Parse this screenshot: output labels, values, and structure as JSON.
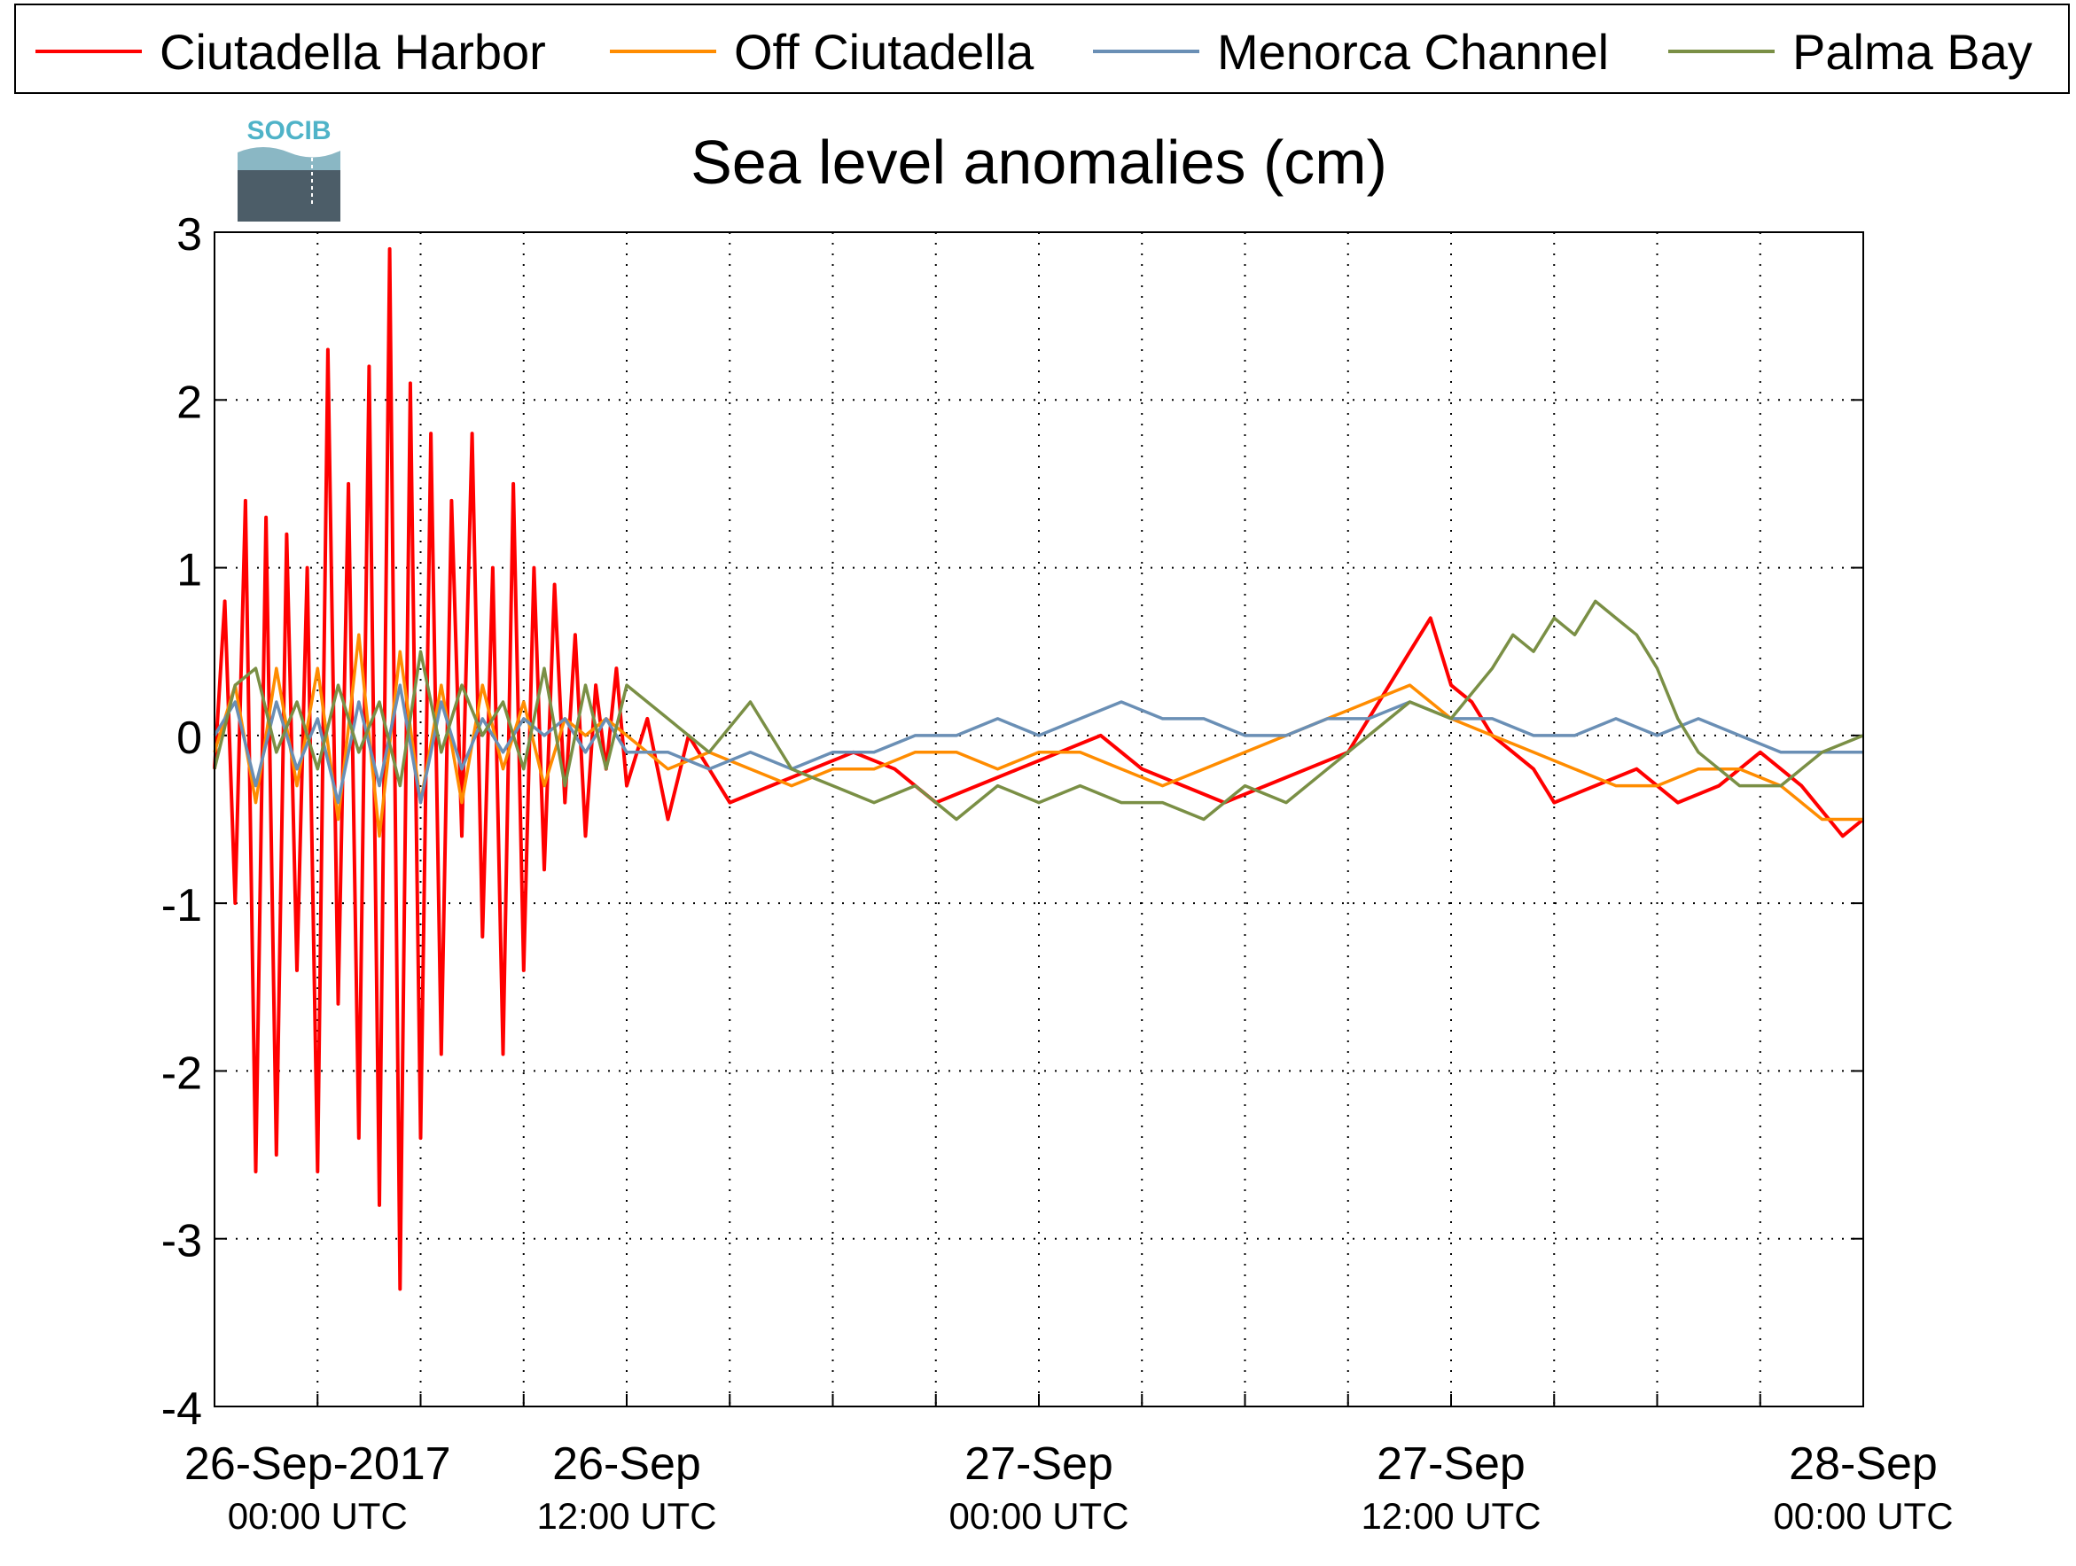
{
  "logo": {
    "text": "SOCIB",
    "color": "#4fb3c8"
  },
  "chart_data": {
    "type": "line",
    "title": "Sea level anomalies (cm)",
    "xlabel": "",
    "ylabel": "",
    "ylim": [
      -4,
      3
    ],
    "yticks": [
      3,
      2,
      1,
      0,
      -1,
      -2,
      -3,
      -4
    ],
    "xlim_hours": [
      -10,
      150
    ],
    "x_ticks": [
      {
        "line1": "26-Sep-2017",
        "line2": "00:00 UTC",
        "hour": 0
      },
      {
        "line1": "26-Sep",
        "line2": "12:00 UTC",
        "hour": 30
      },
      {
        "line1": "27-Sep",
        "line2": "00:00 UTC",
        "hour": 70
      },
      {
        "line1": "27-Sep",
        "line2": "12:00 UTC",
        "hour": 110
      },
      {
        "line1": "28-Sep",
        "line2": "00:00 UTC",
        "hour": 150
      }
    ],
    "grid": true,
    "legend_position": "top",
    "series": [
      {
        "name": "Ciutadella Harbor",
        "color": "#ff0000",
        "x": [
          -10,
          -9,
          -8,
          -7,
          -6,
          -5,
          -4,
          -3,
          -2,
          -1,
          0,
          1,
          2,
          3,
          4,
          5,
          6,
          7,
          8,
          9,
          10,
          11,
          12,
          13,
          14,
          15,
          16,
          17,
          18,
          19,
          20,
          21,
          22,
          23,
          24,
          25,
          26,
          27,
          28,
          29,
          30,
          32,
          34,
          36,
          38,
          40,
          44,
          48,
          52,
          56,
          60,
          64,
          68,
          72,
          76,
          80,
          84,
          88,
          92,
          96,
          100,
          104,
          106,
          108,
          110,
          112,
          114,
          116,
          118,
          120,
          124,
          128,
          132,
          136,
          140,
          144,
          148,
          150
        ],
        "y": [
          -0.2,
          0.8,
          -1.0,
          1.4,
          -2.6,
          1.3,
          -2.5,
          1.2,
          -1.4,
          1.0,
          -2.6,
          2.3,
          -1.6,
          1.5,
          -2.4,
          2.2,
          -2.8,
          2.9,
          -3.3,
          2.1,
          -2.4,
          1.8,
          -1.9,
          1.4,
          -0.6,
          1.8,
          -1.2,
          1.0,
          -1.9,
          1.5,
          -1.4,
          1.0,
          -0.8,
          0.9,
          -0.4,
          0.6,
          -0.6,
          0.3,
          -0.2,
          0.4,
          -0.3,
          0.1,
          -0.5,
          0.0,
          -0.2,
          -0.4,
          -0.3,
          -0.2,
          -0.1,
          -0.2,
          -0.4,
          -0.3,
          -0.2,
          -0.1,
          0.0,
          -0.2,
          -0.3,
          -0.4,
          -0.3,
          -0.2,
          -0.1,
          0.3,
          0.5,
          0.7,
          0.3,
          0.2,
          0.0,
          -0.1,
          -0.2,
          -0.4,
          -0.3,
          -0.2,
          -0.4,
          -0.3,
          -0.1,
          -0.3,
          -0.6,
          -0.5
        ]
      },
      {
        "name": "Off Ciutadella",
        "color": "#ff8c00",
        "x": [
          -10,
          -8,
          -6,
          -4,
          -2,
          0,
          2,
          4,
          6,
          8,
          10,
          12,
          14,
          16,
          18,
          20,
          22,
          24,
          26,
          28,
          30,
          34,
          38,
          42,
          46,
          50,
          54,
          58,
          62,
          66,
          70,
          74,
          78,
          82,
          86,
          90,
          94,
          98,
          102,
          106,
          110,
          114,
          118,
          122,
          126,
          130,
          134,
          138,
          142,
          146,
          150
        ],
        "y": [
          -0.1,
          0.3,
          -0.4,
          0.4,
          -0.3,
          0.4,
          -0.5,
          0.6,
          -0.6,
          0.5,
          -0.4,
          0.3,
          -0.4,
          0.3,
          -0.2,
          0.2,
          -0.3,
          0.1,
          0.0,
          0.1,
          0.0,
          -0.2,
          -0.1,
          -0.2,
          -0.3,
          -0.2,
          -0.2,
          -0.1,
          -0.1,
          -0.2,
          -0.1,
          -0.1,
          -0.2,
          -0.3,
          -0.2,
          -0.1,
          0.0,
          0.1,
          0.2,
          0.3,
          0.1,
          0.0,
          -0.1,
          -0.2,
          -0.3,
          -0.3,
          -0.2,
          -0.2,
          -0.3,
          -0.5,
          -0.5
        ]
      },
      {
        "name": "Menorca Channel",
        "color": "#6a8fb5",
        "x": [
          -10,
          -8,
          -6,
          -4,
          -2,
          0,
          2,
          4,
          6,
          8,
          10,
          12,
          14,
          16,
          18,
          20,
          22,
          24,
          26,
          28,
          30,
          34,
          38,
          42,
          46,
          50,
          54,
          58,
          62,
          66,
          70,
          74,
          78,
          82,
          86,
          90,
          94,
          98,
          102,
          106,
          110,
          114,
          118,
          122,
          126,
          130,
          134,
          138,
          142,
          146,
          150
        ],
        "y": [
          0.0,
          0.2,
          -0.3,
          0.2,
          -0.2,
          0.1,
          -0.4,
          0.2,
          -0.3,
          0.3,
          -0.4,
          0.2,
          -0.2,
          0.1,
          -0.1,
          0.1,
          0.0,
          0.1,
          -0.1,
          0.1,
          -0.1,
          -0.1,
          -0.2,
          -0.1,
          -0.2,
          -0.1,
          -0.1,
          0.0,
          0.0,
          0.1,
          0.0,
          0.1,
          0.2,
          0.1,
          0.1,
          0.0,
          0.0,
          0.1,
          0.1,
          0.2,
          0.1,
          0.1,
          0.0,
          0.0,
          0.1,
          0.0,
          0.1,
          0.0,
          -0.1,
          -0.1,
          -0.1
        ]
      },
      {
        "name": "Palma Bay",
        "color": "#7a8f45",
        "x": [
          -10,
          -8,
          -6,
          -4,
          -2,
          0,
          2,
          4,
          6,
          8,
          10,
          12,
          14,
          16,
          18,
          20,
          22,
          24,
          26,
          28,
          30,
          34,
          38,
          42,
          46,
          50,
          54,
          58,
          62,
          66,
          70,
          74,
          78,
          82,
          86,
          90,
          94,
          98,
          102,
          106,
          110,
          114,
          116,
          118,
          120,
          122,
          124,
          126,
          128,
          130,
          132,
          134,
          136,
          138,
          142,
          146,
          150
        ],
        "y": [
          -0.2,
          0.3,
          0.4,
          -0.1,
          0.2,
          -0.2,
          0.3,
          -0.1,
          0.2,
          -0.3,
          0.5,
          -0.1,
          0.3,
          0.0,
          0.2,
          -0.2,
          0.4,
          -0.3,
          0.3,
          -0.2,
          0.3,
          0.1,
          -0.1,
          0.2,
          -0.2,
          -0.3,
          -0.4,
          -0.3,
          -0.5,
          -0.3,
          -0.4,
          -0.3,
          -0.4,
          -0.4,
          -0.5,
          -0.3,
          -0.4,
          -0.2,
          0.0,
          0.2,
          0.1,
          0.4,
          0.6,
          0.5,
          0.7,
          0.6,
          0.8,
          0.7,
          0.6,
          0.4,
          0.1,
          -0.1,
          -0.2,
          -0.3,
          -0.3,
          -0.1,
          0.0
        ]
      }
    ]
  }
}
